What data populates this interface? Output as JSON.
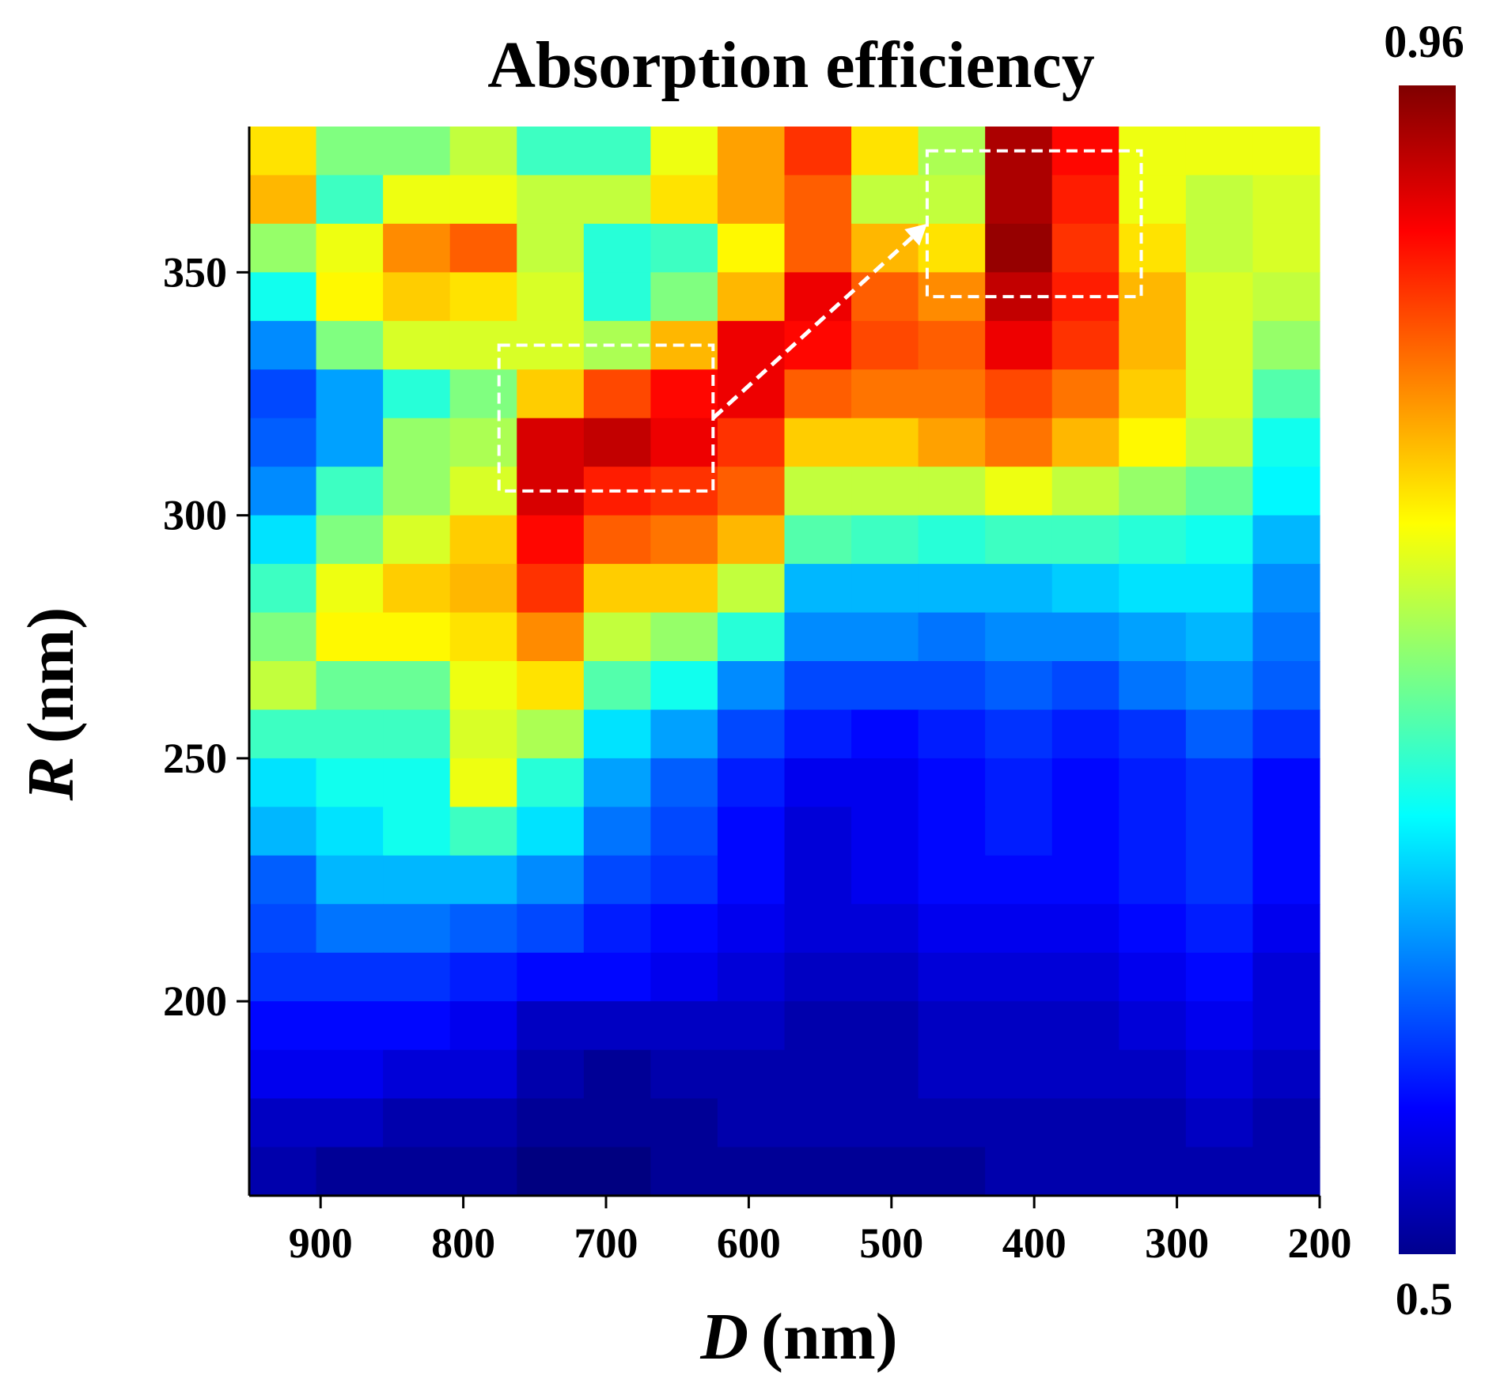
{
  "chart_data": {
    "type": "heatmap",
    "title": "Absorption efficiency",
    "xlabel_var": "D",
    "xlabel_unit": "(nm)",
    "ylabel_var": "R",
    "ylabel_unit": "(nm)",
    "x_range": [
      950,
      200
    ],
    "y_range": [
      160,
      380
    ],
    "x_ticks": [
      900,
      800,
      700,
      600,
      500,
      400,
      300,
      200
    ],
    "y_ticks": [
      200,
      250,
      300,
      350
    ],
    "colorbar": {
      "min": 0.5,
      "max": 0.96,
      "min_label": "0.5",
      "max_label": "0.96",
      "colormap": "jet"
    },
    "columns_D": [
      950,
      900,
      850,
      800,
      750,
      700,
      650,
      600,
      550,
      500,
      450,
      400,
      350,
      300,
      250,
      200
    ],
    "rows_R_top_to_bottom": [
      375,
      365,
      355,
      345,
      335,
      325,
      315,
      305,
      295,
      285,
      275,
      265,
      255,
      245,
      235,
      225,
      215,
      205,
      195,
      185,
      175,
      165
    ],
    "values": [
      [
        0.8,
        0.73,
        0.73,
        0.76,
        0.7,
        0.7,
        0.78,
        0.83,
        0.88,
        0.8,
        0.75,
        0.94,
        0.9,
        0.78,
        0.78,
        0.78
      ],
      [
        0.82,
        0.7,
        0.78,
        0.78,
        0.76,
        0.76,
        0.8,
        0.83,
        0.86,
        0.76,
        0.76,
        0.94,
        0.89,
        0.78,
        0.76,
        0.77
      ],
      [
        0.74,
        0.78,
        0.84,
        0.86,
        0.76,
        0.69,
        0.7,
        0.79,
        0.86,
        0.82,
        0.8,
        0.95,
        0.88,
        0.8,
        0.76,
        0.77
      ],
      [
        0.68,
        0.79,
        0.81,
        0.8,
        0.77,
        0.69,
        0.73,
        0.82,
        0.91,
        0.86,
        0.84,
        0.93,
        0.89,
        0.82,
        0.77,
        0.76
      ],
      [
        0.62,
        0.73,
        0.77,
        0.77,
        0.77,
        0.75,
        0.82,
        0.91,
        0.9,
        0.87,
        0.86,
        0.91,
        0.88,
        0.82,
        0.77,
        0.74
      ],
      [
        0.59,
        0.63,
        0.69,
        0.73,
        0.81,
        0.87,
        0.9,
        0.91,
        0.86,
        0.85,
        0.85,
        0.87,
        0.85,
        0.81,
        0.77,
        0.71
      ],
      [
        0.6,
        0.63,
        0.74,
        0.75,
        0.92,
        0.93,
        0.91,
        0.88,
        0.81,
        0.81,
        0.83,
        0.85,
        0.82,
        0.79,
        0.76,
        0.68
      ],
      [
        0.62,
        0.7,
        0.74,
        0.77,
        0.92,
        0.89,
        0.88,
        0.86,
        0.76,
        0.76,
        0.76,
        0.78,
        0.76,
        0.74,
        0.72,
        0.67
      ],
      [
        0.66,
        0.73,
        0.77,
        0.81,
        0.9,
        0.86,
        0.85,
        0.82,
        0.71,
        0.7,
        0.69,
        0.7,
        0.7,
        0.69,
        0.68,
        0.64
      ],
      [
        0.7,
        0.78,
        0.81,
        0.82,
        0.88,
        0.81,
        0.81,
        0.76,
        0.64,
        0.64,
        0.64,
        0.64,
        0.65,
        0.66,
        0.66,
        0.62
      ],
      [
        0.73,
        0.79,
        0.79,
        0.8,
        0.84,
        0.76,
        0.74,
        0.69,
        0.62,
        0.62,
        0.61,
        0.62,
        0.62,
        0.63,
        0.64,
        0.61
      ],
      [
        0.76,
        0.72,
        0.72,
        0.78,
        0.8,
        0.71,
        0.68,
        0.62,
        0.59,
        0.59,
        0.59,
        0.6,
        0.59,
        0.61,
        0.62,
        0.6
      ],
      [
        0.7,
        0.7,
        0.7,
        0.77,
        0.75,
        0.66,
        0.63,
        0.59,
        0.57,
        0.56,
        0.57,
        0.58,
        0.57,
        0.58,
        0.6,
        0.58
      ],
      [
        0.66,
        0.68,
        0.68,
        0.78,
        0.69,
        0.63,
        0.6,
        0.57,
        0.55,
        0.55,
        0.56,
        0.57,
        0.56,
        0.57,
        0.58,
        0.56
      ],
      [
        0.64,
        0.66,
        0.68,
        0.7,
        0.66,
        0.61,
        0.59,
        0.56,
        0.54,
        0.55,
        0.56,
        0.57,
        0.56,
        0.57,
        0.58,
        0.56
      ],
      [
        0.6,
        0.64,
        0.64,
        0.64,
        0.62,
        0.59,
        0.58,
        0.56,
        0.54,
        0.55,
        0.56,
        0.56,
        0.56,
        0.57,
        0.58,
        0.56
      ],
      [
        0.59,
        0.61,
        0.61,
        0.6,
        0.59,
        0.57,
        0.56,
        0.55,
        0.54,
        0.54,
        0.55,
        0.55,
        0.55,
        0.56,
        0.57,
        0.55
      ],
      [
        0.58,
        0.58,
        0.58,
        0.57,
        0.56,
        0.56,
        0.55,
        0.54,
        0.53,
        0.53,
        0.54,
        0.54,
        0.54,
        0.55,
        0.56,
        0.54
      ],
      [
        0.56,
        0.56,
        0.56,
        0.55,
        0.53,
        0.53,
        0.53,
        0.53,
        0.52,
        0.52,
        0.53,
        0.53,
        0.53,
        0.54,
        0.55,
        0.54
      ],
      [
        0.55,
        0.55,
        0.54,
        0.54,
        0.52,
        0.51,
        0.52,
        0.52,
        0.52,
        0.52,
        0.53,
        0.53,
        0.53,
        0.53,
        0.54,
        0.53
      ],
      [
        0.53,
        0.53,
        0.52,
        0.52,
        0.51,
        0.51,
        0.51,
        0.52,
        0.52,
        0.52,
        0.52,
        0.52,
        0.52,
        0.52,
        0.53,
        0.52
      ],
      [
        0.52,
        0.51,
        0.51,
        0.51,
        0.5,
        0.5,
        0.51,
        0.51,
        0.51,
        0.51,
        0.51,
        0.52,
        0.52,
        0.52,
        0.52,
        0.52
      ]
    ],
    "annotations": [
      {
        "type": "dashed-box",
        "D_range": [
          775,
          625
        ],
        "R_range": [
          305,
          335
        ]
      },
      {
        "type": "dashed-box",
        "D_range": [
          475,
          325
        ],
        "R_range": [
          345,
          375
        ]
      },
      {
        "type": "dashed-arrow",
        "from": [
          625,
          320
        ],
        "to": [
          475,
          360
        ]
      }
    ]
  }
}
